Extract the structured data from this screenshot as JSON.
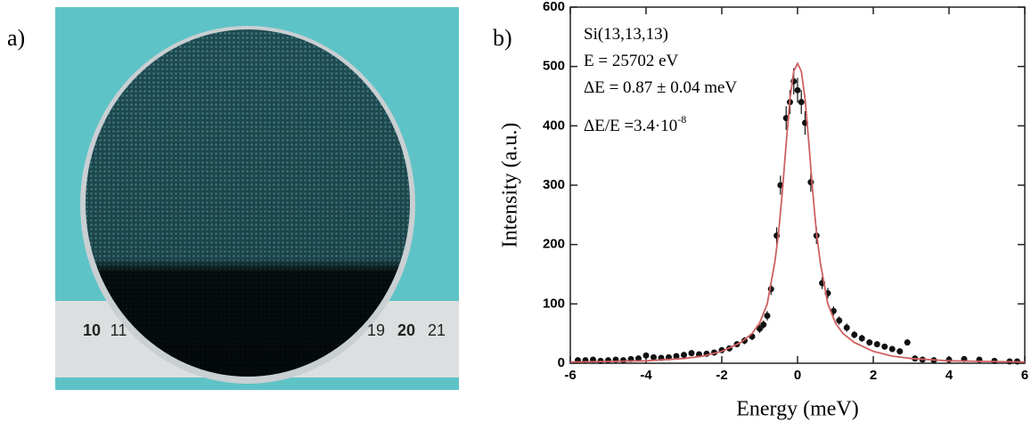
{
  "panels": {
    "a": "a)",
    "b": "b)"
  },
  "photo": {
    "ruler_labels": [
      "10",
      "11",
      "19",
      "20",
      "21"
    ]
  },
  "chart_data": {
    "type": "scatter",
    "xlabel": "Energy (meV)",
    "ylabel": "Intensity (a.u.)",
    "annotations": [
      {
        "text": "Si(13,13,13)"
      },
      {
        "text": "E = 25702 eV"
      },
      {
        "text": "ΔE = 0.87 ± 0.04 meV"
      },
      {
        "text": "ΔE/E =3.4·10",
        "superscript": "-8"
      }
    ],
    "xlim": [
      -6,
      6
    ],
    "ylim": [
      0,
      600
    ],
    "xticks": [
      -6,
      -4,
      -2,
      0,
      2,
      4,
      6
    ],
    "yticks": [
      0,
      100,
      200,
      300,
      400,
      500,
      600
    ],
    "series": [
      {
        "mode": "markers",
        "color": "#111111",
        "x": [
          -5.8,
          -5.6,
          -5.4,
          -5.2,
          -5.0,
          -4.8,
          -4.6,
          -4.4,
          -4.2,
          -4.0,
          -3.8,
          -3.6,
          -3.4,
          -3.2,
          -3.0,
          -2.8,
          -2.6,
          -2.4,
          -2.2,
          -2.0,
          -1.8,
          -1.6,
          -1.4,
          -1.2,
          -1.0,
          -0.9,
          -0.8,
          -0.7,
          -0.55,
          -0.45,
          -0.3,
          -0.2,
          -0.1,
          0,
          0.1,
          0.2,
          0.35,
          0.5,
          0.65,
          0.8,
          0.95,
          1.1,
          1.3,
          1.5,
          1.7,
          1.9,
          2.1,
          2.3,
          2.5,
          2.7,
          2.9,
          3.1,
          3.3,
          3.6,
          4.0,
          4.4,
          4.8,
          5.2,
          5.6,
          5.8
        ],
        "values": [
          5,
          5,
          6,
          4,
          5,
          6,
          5,
          7,
          8,
          13,
          10,
          9,
          10,
          12,
          14,
          17,
          15,
          16,
          18,
          22,
          25,
          32,
          38,
          45,
          58,
          65,
          80,
          125,
          215,
          300,
          413,
          440,
          475,
          460,
          440,
          405,
          305,
          215,
          135,
          118,
          88,
          72,
          60,
          48,
          42,
          35,
          32,
          28,
          24,
          20,
          35,
          8,
          6,
          5,
          6,
          7,
          6,
          4,
          3,
          3
        ],
        "errors": [
          3,
          3,
          3,
          3,
          3,
          3,
          3,
          3,
          3,
          4,
          3,
          3,
          3,
          4,
          4,
          4,
          4,
          4,
          4,
          5,
          5,
          5,
          6,
          6,
          7,
          7,
          8,
          10,
          14,
          16,
          20,
          20,
          22,
          21,
          20,
          20,
          16,
          14,
          10,
          9,
          8,
          7,
          7,
          6,
          6,
          5,
          5,
          5,
          5,
          4,
          5,
          3,
          3,
          3,
          3,
          3,
          3,
          3,
          3,
          3
        ]
      },
      {
        "mode": "lines",
        "color": "#d06060",
        "x": [
          -6,
          -5,
          -4,
          -3,
          -2.5,
          -2,
          -1.5,
          -1.2,
          -1,
          -0.8,
          -0.6,
          -0.5,
          -0.4,
          -0.3,
          -0.2,
          -0.1,
          0,
          0.1,
          0.2,
          0.3,
          0.4,
          0.5,
          0.6,
          0.8,
          1,
          1.2,
          1.5,
          2,
          2.5,
          3,
          4,
          5,
          6
        ],
        "values": [
          2,
          3,
          4,
          8,
          12,
          20,
          35,
          50,
          68,
          100,
          170,
          220,
          290,
          370,
          445,
          492,
          505,
          492,
          445,
          370,
          290,
          220,
          170,
          100,
          68,
          50,
          35,
          20,
          12,
          8,
          4,
          3,
          2
        ]
      }
    ]
  }
}
